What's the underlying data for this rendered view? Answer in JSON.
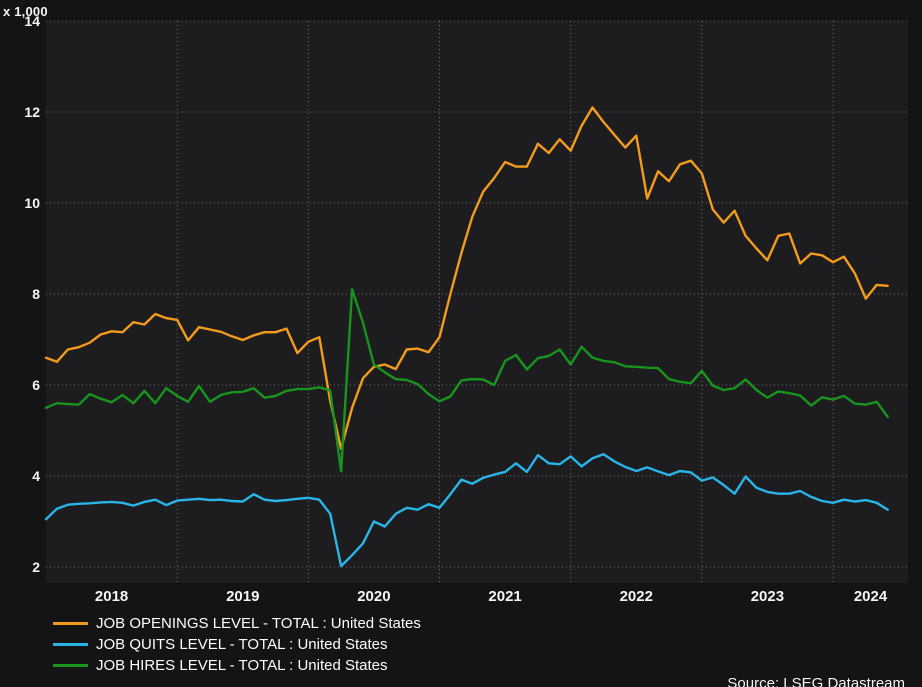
{
  "colors": {
    "background": "#141414",
    "plot_background": "#1d1d1f",
    "grid": "#8f8f8f",
    "text": "#f5f5f5",
    "openings_line": "#f39b1d",
    "quits_line": "#29b5e8",
    "hires_line": "#18941e"
  },
  "footer": {
    "source": "Source: LSEG Datastream"
  },
  "chart_data": {
    "type": "line",
    "title": "",
    "y_multiplier_label": "x 1,000",
    "units": "levels in thousands (axis values x 1,000)",
    "grid": "dotted",
    "legend_position": "bottom-left",
    "y_ticks": [
      14,
      12,
      10,
      8,
      6,
      4,
      2
    ],
    "ylim": [
      1.65,
      14
    ],
    "x_tick_labels": [
      "2018",
      "2019",
      "2020",
      "2021",
      "2022",
      "2023",
      "2024"
    ],
    "x_start": "2018-01",
    "x_end": "2024-06",
    "frequency": "monthly",
    "series": [
      {
        "name": "JOB OPENINGS LEVEL - TOTAL : United States",
        "color": "#f39b1d",
        "values": [
          6.6,
          6.51,
          6.78,
          6.83,
          6.93,
          7.11,
          7.18,
          7.16,
          7.38,
          7.33,
          7.56,
          7.47,
          7.43,
          6.98,
          7.27,
          7.22,
          7.17,
          7.07,
          6.99,
          7.09,
          7.16,
          7.16,
          7.24,
          6.7,
          6.95,
          7.05,
          5.65,
          4.6,
          5.5,
          6.15,
          6.4,
          6.45,
          6.35,
          6.78,
          6.8,
          6.72,
          7.05,
          8.0,
          8.9,
          9.7,
          10.25,
          10.55,
          10.9,
          10.8,
          10.8,
          11.3,
          11.1,
          11.4,
          11.15,
          11.7,
          12.1,
          11.78,
          11.5,
          11.22,
          11.48,
          10.1,
          10.7,
          10.48,
          10.85,
          10.93,
          10.65,
          9.86,
          9.57,
          9.83,
          9.28,
          9.0,
          8.74,
          9.28,
          9.33,
          8.67,
          8.89,
          8.85,
          8.7,
          8.82,
          8.45,
          7.9,
          8.2,
          8.18
        ]
      },
      {
        "name": "JOB QUITS LEVEL - TOTAL : United States",
        "color": "#29b5e8",
        "values": [
          3.05,
          3.28,
          3.37,
          3.39,
          3.4,
          3.42,
          3.43,
          3.41,
          3.35,
          3.43,
          3.48,
          3.36,
          3.46,
          3.48,
          3.5,
          3.47,
          3.48,
          3.45,
          3.44,
          3.6,
          3.48,
          3.45,
          3.47,
          3.5,
          3.52,
          3.48,
          3.17,
          2.02,
          2.26,
          2.52,
          3.0,
          2.89,
          3.17,
          3.3,
          3.26,
          3.38,
          3.3,
          3.6,
          3.92,
          3.83,
          3.96,
          4.03,
          4.09,
          4.28,
          4.09,
          4.46,
          4.28,
          4.26,
          4.43,
          4.21,
          4.39,
          4.48,
          4.32,
          4.2,
          4.11,
          4.19,
          4.1,
          4.02,
          4.11,
          4.08,
          3.9,
          3.97,
          3.8,
          3.61,
          3.99,
          3.74,
          3.65,
          3.61,
          3.61,
          3.67,
          3.54,
          3.45,
          3.41,
          3.48,
          3.44,
          3.47,
          3.41,
          3.26
        ]
      },
      {
        "name": "JOB HIRES LEVEL - TOTAL : United States",
        "color": "#18941e",
        "values": [
          5.5,
          5.6,
          5.58,
          5.57,
          5.8,
          5.7,
          5.62,
          5.78,
          5.6,
          5.87,
          5.6,
          5.93,
          5.76,
          5.63,
          5.98,
          5.63,
          5.78,
          5.84,
          5.85,
          5.93,
          5.72,
          5.76,
          5.87,
          5.91,
          5.91,
          5.95,
          5.88,
          4.1,
          8.1,
          7.37,
          6.45,
          6.28,
          6.13,
          6.11,
          6.02,
          5.8,
          5.64,
          5.75,
          6.1,
          6.13,
          6.12,
          6.0,
          6.53,
          6.66,
          6.34,
          6.59,
          6.64,
          6.78,
          6.45,
          6.84,
          6.6,
          6.53,
          6.5,
          6.41,
          6.4,
          6.38,
          6.37,
          6.13,
          6.07,
          6.04,
          6.31,
          5.99,
          5.89,
          5.93,
          6.12,
          5.89,
          5.72,
          5.86,
          5.82,
          5.77,
          5.55,
          5.73,
          5.68,
          5.76,
          5.59,
          5.57,
          5.63,
          5.3
        ]
      }
    ]
  }
}
